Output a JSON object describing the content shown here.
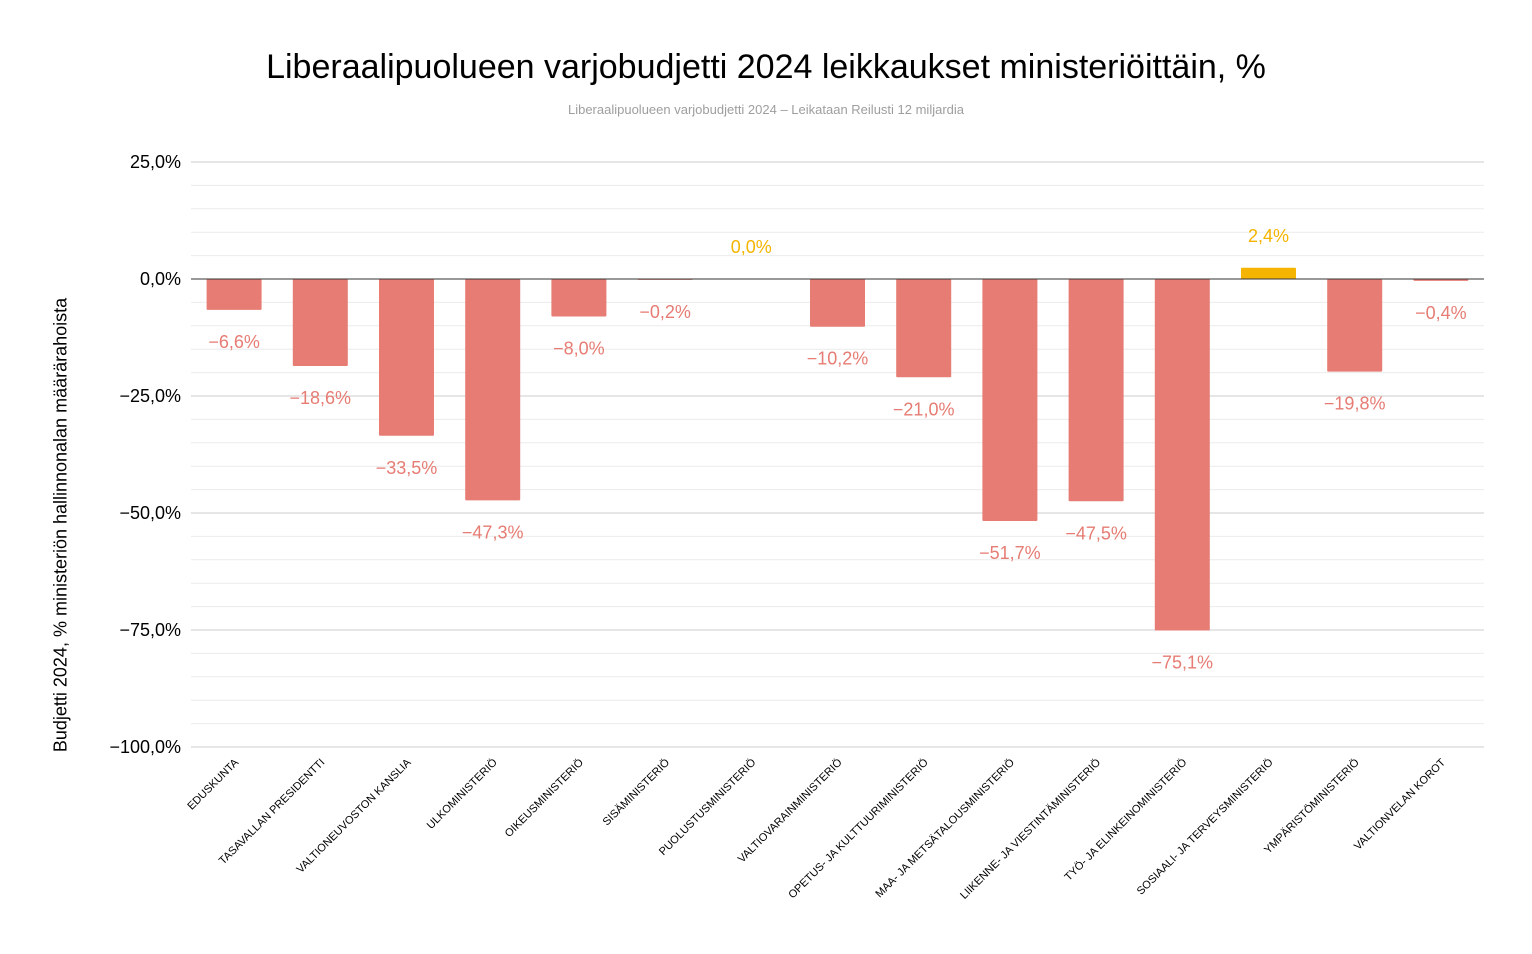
{
  "chart_data": {
    "type": "bar",
    "title": "Liberaalipuolueen varjobudjetti 2024 leikkaukset ministeriöittäin, %",
    "subtitle": "Liberaalipuolueen varjobudjetti 2024 – Leikataan Reilusti 12 miljardia",
    "xlabel": "",
    "ylabel": "Budjetti 2024, % ministeriön hallinnonalan määrärahoista",
    "ylim": [
      -100,
      25
    ],
    "yticks": [
      25,
      0,
      -25,
      -50,
      -75,
      -100
    ],
    "ytick_labels": [
      "25,0%",
      "0,0%",
      "−25,0%",
      "−50,0%",
      "−75,0%",
      "−100,0%"
    ],
    "grid": true,
    "categories": [
      "EDUSKUNTA",
      "TASAVALLAN PRESIDENTTI",
      "VALTIONEUVOSTON KANSLIA",
      "ULKOMINISTERIÖ",
      "OIKEUSMINISTERIÖ",
      "SISÄMINISTERIÖ",
      "PUOLUSTUSMINISTERIÖ",
      "VALTIOVARAINMINISTERIÖ",
      "OPETUS- JA KULTTUURIMINISTERIÖ",
      "MAA- JA METSÄTALOUSMINISTERIÖ",
      "LIIKENNE- JA VIESTINTÄMINISTERIÖ",
      "TYÖ- JA ELINKEINOMINISTERIÖ",
      "SOSIAALI- JA TERVEYSMINISTERIÖ",
      "YMPÄRISTÖMINISTERIÖ",
      "VALTIONVELAN KOROT"
    ],
    "values": [
      -6.6,
      -18.6,
      -33.5,
      -47.3,
      -8.0,
      -0.2,
      0.0,
      -10.2,
      -21.0,
      -51.7,
      -47.5,
      -75.1,
      2.4,
      -19.8,
      -0.4
    ],
    "value_labels": [
      "−6,6%",
      "−18,6%",
      "−33,5%",
      "−47,3%",
      "−8,0%",
      "−0,2%",
      "0,0%",
      "−10,2%",
      "−21,0%",
      "−51,7%",
      "−47,5%",
      "−75,1%",
      "2,4%",
      "−19,8%",
      "−0,4%"
    ],
    "colors": {
      "negative": "#e67c73",
      "positive": "#f4b400",
      "grid": "#cccccc",
      "minor_grid": "#ebebeb",
      "zero_line": "#333333"
    }
  }
}
